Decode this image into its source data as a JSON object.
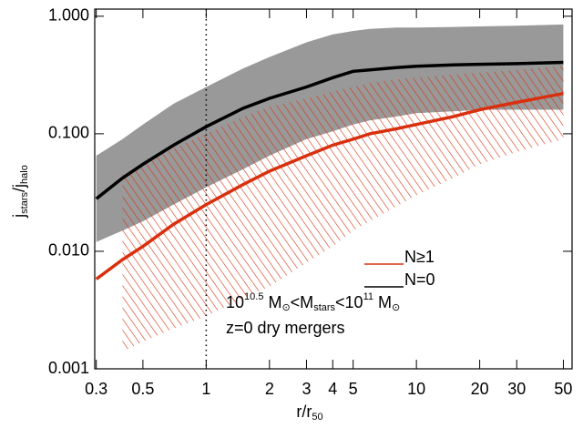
{
  "chart_data": {
    "type": "line",
    "xlabel": [
      {
        "text": "r/r"
      },
      {
        "sub": "50"
      }
    ],
    "ylabel": [
      {
        "text": "j"
      },
      {
        "sub": "stars"
      },
      {
        "text": "/j"
      },
      {
        "sub": "halo"
      }
    ],
    "x": [
      0.3,
      0.4,
      0.5,
      0.7,
      1,
      1.5,
      2,
      3,
      4,
      5,
      6,
      8,
      10,
      15,
      20,
      30,
      50
    ],
    "series": [
      {
        "name": "N≥1",
        "color": "#d8300e",
        "band_style": "hatch",
        "values": [
          0.0058,
          0.0085,
          0.011,
          0.017,
          0.025,
          0.037,
          0.048,
          0.065,
          0.08,
          0.09,
          0.1,
          0.11,
          0.12,
          0.14,
          0.16,
          0.185,
          0.22
        ],
        "band_high": [
          null,
          0.045,
          0.055,
          0.075,
          0.1,
          0.14,
          0.17,
          0.2,
          0.23,
          0.25,
          0.27,
          0.29,
          0.3,
          0.32,
          0.33,
          0.35,
          0.38
        ],
        "band_low": [
          null,
          0.0014,
          0.0017,
          0.0022,
          0.0028,
          0.004,
          0.005,
          0.008,
          0.011,
          0.015,
          0.018,
          0.024,
          0.03,
          0.042,
          0.055,
          0.07,
          0.09
        ]
      },
      {
        "name": "N=0",
        "color": "#000000",
        "band_style": "fill",
        "band_color": "#999999",
        "values": [
          0.028,
          0.042,
          0.055,
          0.08,
          0.115,
          0.165,
          0.2,
          0.25,
          0.3,
          0.34,
          0.35,
          0.365,
          0.375,
          0.385,
          0.39,
          0.395,
          0.405
        ],
        "band_high": [
          0.065,
          0.09,
          0.12,
          0.18,
          0.25,
          0.36,
          0.45,
          0.6,
          0.7,
          0.75,
          0.78,
          0.8,
          0.8,
          0.81,
          0.82,
          0.83,
          0.85
        ],
        "band_low": [
          0.012,
          0.015,
          0.018,
          0.025,
          0.035,
          0.05,
          0.065,
          0.09,
          0.105,
          0.12,
          0.13,
          0.14,
          0.15,
          0.155,
          0.16,
          0.16,
          0.16
        ]
      }
    ],
    "xlim": [
      0.295,
      55
    ],
    "ylim": [
      0.001,
      1.15
    ],
    "xlog": true,
    "ylog": true,
    "xticks": [
      0.3,
      0.5,
      1,
      2,
      3,
      4,
      5,
      10,
      20,
      30,
      50
    ],
    "yticks": [
      {
        "value": 0.001,
        "label": "0.001"
      },
      {
        "value": 0.01,
        "label": "0.010"
      },
      {
        "value": 0.1,
        "label": "0.100"
      },
      {
        "value": 1,
        "label": "1.000"
      }
    ],
    "vline": 1,
    "annotations": [
      [
        {
          "text": "10"
        },
        {
          "sup": "10.5"
        },
        {
          "text": " M"
        },
        {
          "sub": "⊙"
        },
        {
          "text": "<M"
        },
        {
          "sub": "stars"
        },
        {
          "text": "<10"
        },
        {
          "sup": "11"
        },
        {
          "text": " M"
        },
        {
          "sub": "⊙"
        }
      ],
      [
        {
          "text": "z=0 dry mergers"
        }
      ]
    ]
  }
}
